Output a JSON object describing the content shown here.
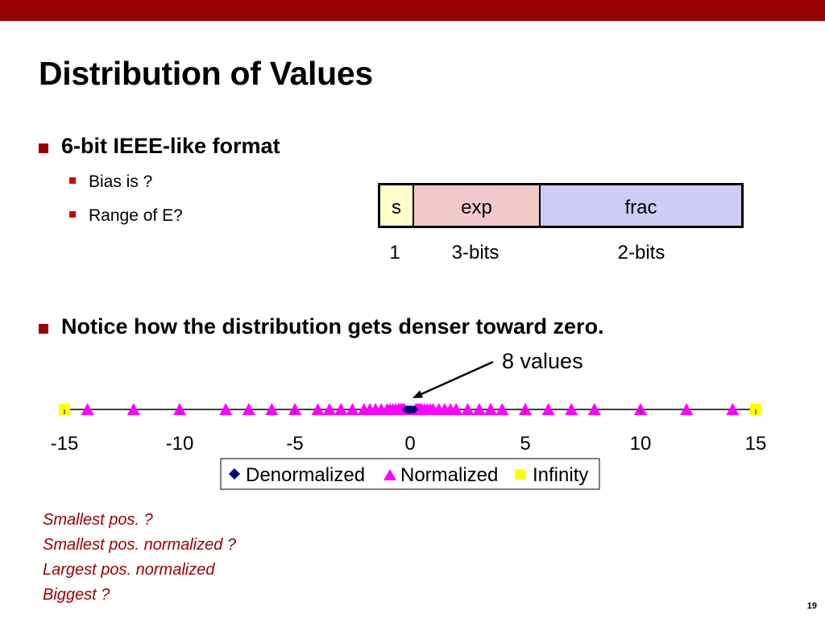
{
  "slide": {
    "title": "Distribution of Values",
    "page_number": "19"
  },
  "bullets": [
    {
      "text": "6-bit IEEE-like format",
      "sub": [
        "Bias is ?",
        "Range of E?"
      ]
    },
    {
      "text": "Notice how the distribution gets denser toward zero."
    }
  ],
  "format": {
    "fields": [
      "s",
      "exp",
      "frac"
    ],
    "bits": [
      "1",
      "3-bits",
      "2-bits"
    ],
    "colors": {
      "s": "#ffffcc",
      "exp": "#f2c9c9",
      "frac": "#ccccf5"
    }
  },
  "annotation": "8 values",
  "notes": [
    "Smallest pos. ?",
    "Smallest pos. normalized ?",
    "Largest pos. normalized",
    "Biggest ?"
  ],
  "chart_data": {
    "type": "scatter",
    "xlim": [
      -15,
      15
    ],
    "x_ticks": [
      "-15",
      "-10",
      "-5",
      "0",
      "5",
      "10",
      "15"
    ],
    "x_tick_values": [
      -15,
      -10,
      -5,
      0,
      5,
      10,
      15
    ],
    "series": [
      {
        "name": "Denormalized",
        "marker": "diamond",
        "color": "#000080",
        "values": [
          -0.1875,
          -0.125,
          -0.0625,
          0,
          0,
          0.0625,
          0.125,
          0.1875
        ]
      },
      {
        "name": "Normalized",
        "marker": "triangle",
        "color": "#ff00ff",
        "values": [
          -14,
          -12,
          -10,
          -8,
          -7,
          -6,
          -5,
          -4,
          -3.5,
          -3,
          -2.5,
          -2,
          -1.75,
          -1.5,
          -1.25,
          -1,
          -0.875,
          -0.75,
          -0.625,
          -0.5,
          -0.4375,
          -0.375,
          -0.3125,
          -0.25,
          0.25,
          0.3125,
          0.375,
          0.4375,
          0.5,
          0.625,
          0.75,
          0.875,
          1,
          1.25,
          1.5,
          1.75,
          2,
          2.5,
          3,
          3.5,
          4,
          5,
          6,
          7,
          8,
          10,
          12,
          14
        ]
      },
      {
        "name": "Infinity",
        "marker": "square",
        "color": "#ffff00",
        "values": [
          -15,
          15
        ]
      }
    ],
    "legend_position": "bottom-center"
  }
}
